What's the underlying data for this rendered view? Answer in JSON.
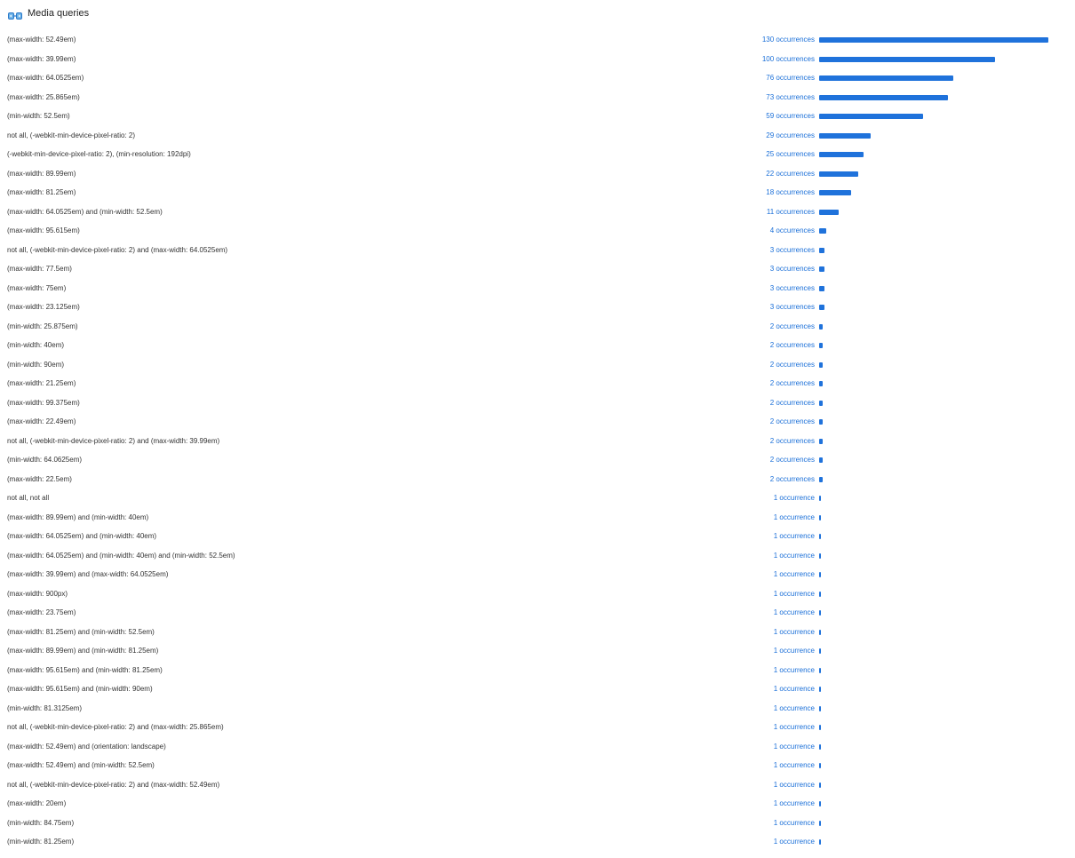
{
  "header": {
    "title": "Media queries",
    "icon": "media-queries-icon",
    "accent_color": "#1f72db"
  },
  "rows": [
    {
      "label": "(max-width: 52.49em)",
      "count": 130,
      "count_label": "130 occurrences"
    },
    {
      "label": "(max-width: 39.99em)",
      "count": 100,
      "count_label": "100 occurrences"
    },
    {
      "label": "(max-width: 64.0525em)",
      "count": 76,
      "count_label": "76 occurrences"
    },
    {
      "label": "(max-width: 25.865em)",
      "count": 73,
      "count_label": "73 occurrences"
    },
    {
      "label": "(min-width: 52.5em)",
      "count": 59,
      "count_label": "59 occurrences"
    },
    {
      "label": "not all, (-webkit-min-device-pixel-ratio: 2)",
      "count": 29,
      "count_label": "29 occurrences"
    },
    {
      "label": "(-webkit-min-device-pixel-ratio: 2), (min-resolution: 192dpi)",
      "count": 25,
      "count_label": "25 occurrences"
    },
    {
      "label": "(max-width: 89.99em)",
      "count": 22,
      "count_label": "22 occurrences"
    },
    {
      "label": "(max-width: 81.25em)",
      "count": 18,
      "count_label": "18 occurrences"
    },
    {
      "label": "(max-width: 64.0525em) and (min-width: 52.5em)",
      "count": 11,
      "count_label": "11 occurrences"
    },
    {
      "label": "(max-width: 95.615em)",
      "count": 4,
      "count_label": "4 occurrences"
    },
    {
      "label": "not all, (-webkit-min-device-pixel-ratio: 2) and (max-width: 64.0525em)",
      "count": 3,
      "count_label": "3 occurrences"
    },
    {
      "label": "(max-width: 77.5em)",
      "count": 3,
      "count_label": "3 occurrences"
    },
    {
      "label": "(max-width: 75em)",
      "count": 3,
      "count_label": "3 occurrences"
    },
    {
      "label": "(max-width: 23.125em)",
      "count": 3,
      "count_label": "3 occurrences"
    },
    {
      "label": "(min-width: 25.875em)",
      "count": 2,
      "count_label": "2 occurrences"
    },
    {
      "label": "(min-width: 40em)",
      "count": 2,
      "count_label": "2 occurrences"
    },
    {
      "label": "(min-width: 90em)",
      "count": 2,
      "count_label": "2 occurrences"
    },
    {
      "label": "(max-width: 21.25em)",
      "count": 2,
      "count_label": "2 occurrences"
    },
    {
      "label": "(max-width: 99.375em)",
      "count": 2,
      "count_label": "2 occurrences"
    },
    {
      "label": "(max-width: 22.49em)",
      "count": 2,
      "count_label": "2 occurrences"
    },
    {
      "label": "not all, (-webkit-min-device-pixel-ratio: 2) and (max-width: 39.99em)",
      "count": 2,
      "count_label": "2 occurrences"
    },
    {
      "label": "(min-width: 64.0625em)",
      "count": 2,
      "count_label": "2 occurrences"
    },
    {
      "label": "(max-width: 22.5em)",
      "count": 2,
      "count_label": "2 occurrences"
    },
    {
      "label": "not all, not all",
      "count": 1,
      "count_label": "1 occurrence"
    },
    {
      "label": "(max-width: 89.99em) and (min-width: 40em)",
      "count": 1,
      "count_label": "1 occurrence"
    },
    {
      "label": "(max-width: 64.0525em) and (min-width: 40em)",
      "count": 1,
      "count_label": "1 occurrence"
    },
    {
      "label": "(max-width: 64.0525em) and (min-width: 40em) and (min-width: 52.5em)",
      "count": 1,
      "count_label": "1 occurrence"
    },
    {
      "label": "(max-width: 39.99em) and (max-width: 64.0525em)",
      "count": 1,
      "count_label": "1 occurrence"
    },
    {
      "label": "(max-width: 900px)",
      "count": 1,
      "count_label": "1 occurrence"
    },
    {
      "label": "(max-width: 23.75em)",
      "count": 1,
      "count_label": "1 occurrence"
    },
    {
      "label": "(max-width: 81.25em) and (min-width: 52.5em)",
      "count": 1,
      "count_label": "1 occurrence"
    },
    {
      "label": "(max-width: 89.99em) and (min-width: 81.25em)",
      "count": 1,
      "count_label": "1 occurrence"
    },
    {
      "label": "(max-width: 95.615em) and (min-width: 81.25em)",
      "count": 1,
      "count_label": "1 occurrence"
    },
    {
      "label": "(max-width: 95.615em) and (min-width: 90em)",
      "count": 1,
      "count_label": "1 occurrence"
    },
    {
      "label": "(min-width: 81.3125em)",
      "count": 1,
      "count_label": "1 occurrence"
    },
    {
      "label": "not all, (-webkit-min-device-pixel-ratio: 2) and (max-width: 25.865em)",
      "count": 1,
      "count_label": "1 occurrence"
    },
    {
      "label": "(max-width: 52.49em) and (orientation: landscape)",
      "count": 1,
      "count_label": "1 occurrence"
    },
    {
      "label": "(max-width: 52.49em) and (min-width: 52.5em)",
      "count": 1,
      "count_label": "1 occurrence"
    },
    {
      "label": "not all, (-webkit-min-device-pixel-ratio: 2) and (max-width: 52.49em)",
      "count": 1,
      "count_label": "1 occurrence"
    },
    {
      "label": "(max-width: 20em)",
      "count": 1,
      "count_label": "1 occurrence"
    },
    {
      "label": "(min-width: 84.75em)",
      "count": 1,
      "count_label": "1 occurrence"
    },
    {
      "label": "(min-width: 81.25em)",
      "count": 1,
      "count_label": "1 occurrence"
    }
  ]
}
